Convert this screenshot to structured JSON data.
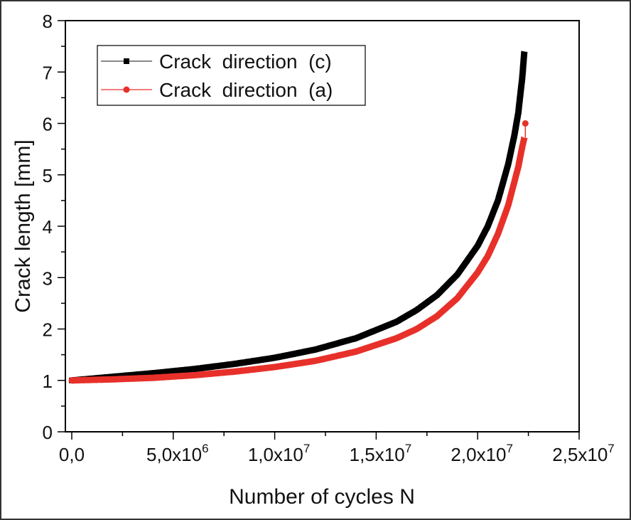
{
  "chart_data": {
    "type": "line",
    "title": "",
    "xlabel": "Number of cycles  N",
    "ylabel": "Crack length  [mm]",
    "xlim": [
      -300000,
      25000000
    ],
    "ylim": [
      0,
      8
    ],
    "grid": false,
    "legend_position": "upper left",
    "x_tick_labels": [
      "0,0",
      "5,0x10^6",
      "1,0x10^7",
      "1,5x10^7",
      "2,0x10^7",
      "2,5x10^7"
    ],
    "x_ticks": [
      0,
      5000000,
      10000000,
      15000000,
      20000000,
      25000000
    ],
    "y_ticks": [
      0,
      1,
      2,
      3,
      4,
      5,
      6,
      7,
      8
    ],
    "series": [
      {
        "name": "Crack direction  (c)",
        "color": "#000000",
        "marker": "square",
        "x": [
          0,
          2000000,
          4000000,
          6000000,
          8000000,
          10000000,
          12000000,
          14000000,
          16000000,
          17000000,
          18000000,
          19000000,
          20000000,
          20500000,
          21000000,
          21500000,
          21800000,
          22000000,
          22200000,
          22300000
        ],
        "values": [
          1.0,
          1.07,
          1.14,
          1.22,
          1.32,
          1.44,
          1.6,
          1.82,
          2.14,
          2.37,
          2.66,
          3.06,
          3.62,
          4.0,
          4.5,
          5.2,
          5.75,
          6.2,
          6.9,
          7.4
        ]
      },
      {
        "name": "Crack direction  (a)",
        "color": "#e8302a",
        "marker": "circle",
        "x": [
          0,
          2000000,
          4000000,
          6000000,
          8000000,
          10000000,
          12000000,
          14000000,
          16000000,
          17000000,
          18000000,
          19000000,
          20000000,
          20500000,
          21000000,
          21500000,
          21800000,
          22000000,
          22200000,
          22300000,
          22350000
        ],
        "values": [
          1.0,
          1.02,
          1.05,
          1.1,
          1.17,
          1.26,
          1.38,
          1.56,
          1.82,
          2.0,
          2.25,
          2.6,
          3.1,
          3.42,
          3.85,
          4.4,
          4.85,
          5.15,
          5.55,
          5.72,
          6.0
        ]
      }
    ]
  },
  "legend": {
    "items": [
      {
        "label": "Crack  direction  (c)",
        "color": "#000000",
        "marker": "square"
      },
      {
        "label": "Crack  direction  (a)",
        "color": "#e8302a",
        "marker": "circle"
      }
    ]
  },
  "axes": {
    "x_title": "Number of cycles  N",
    "y_title": "Crack length  [mm]",
    "y_tick_labels": [
      "0",
      "1",
      "2",
      "3",
      "4",
      "5",
      "6",
      "7",
      "8"
    ],
    "x_tick_mantissa": [
      "0,0",
      "5,0x10",
      "1,0x10",
      "1,5x10",
      "2,0x10",
      "2,5x10"
    ],
    "x_tick_exponent": [
      "",
      "6",
      "7",
      "7",
      "7",
      "7"
    ]
  }
}
